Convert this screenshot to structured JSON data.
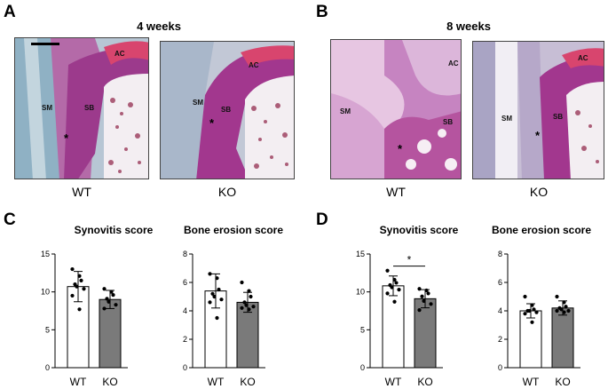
{
  "panels": {
    "A": {
      "letter": "A",
      "title": "4 weeks",
      "left_caption": "WT",
      "right_caption": "KO"
    },
    "B": {
      "letter": "B",
      "title": "8 weeks",
      "left_caption": "WT",
      "right_caption": "KO"
    },
    "C": {
      "letter": "C"
    },
    "D": {
      "letter": "D"
    }
  },
  "tissue_labels": {
    "am": "AC",
    "sm": "SM",
    "sb": "SB",
    "star": "*"
  },
  "chart_data": [
    {
      "type": "bar",
      "panel": "C",
      "title": "Synovitis score",
      "categories": [
        "WT",
        "KO"
      ],
      "values": [
        10.7,
        9.0
      ],
      "errors": [
        2.0,
        1.2
      ],
      "ylim": [
        0,
        15
      ],
      "yticks": [
        0,
        5,
        10,
        15
      ],
      "points": [
        [
          13.0,
          12.1,
          11.5,
          11.0,
          10.7,
          10.4,
          9.5,
          7.7
        ],
        [
          10.4,
          10.0,
          9.6,
          9.1,
          8.7,
          8.3,
          7.8
        ]
      ],
      "colors": [
        "#ffffff",
        "#7a7a7a"
      ],
      "significance": ""
    },
    {
      "type": "bar",
      "panel": "C",
      "title": "Bone erosion score",
      "categories": [
        "WT",
        "KO"
      ],
      "values": [
        5.4,
        4.6
      ],
      "errors": [
        1.2,
        0.7
      ],
      "ylim": [
        0,
        8
      ],
      "yticks": [
        0,
        2,
        4,
        6,
        8
      ],
      "points": [
        [
          6.6,
          6.3,
          5.5,
          5.2,
          5.0,
          4.8,
          4.6,
          3.5
        ],
        [
          6.0,
          5.4,
          5.0,
          4.6,
          4.4,
          4.3,
          4.2,
          4.1
        ]
      ],
      "colors": [
        "#ffffff",
        "#7a7a7a"
      ],
      "significance": ""
    },
    {
      "type": "bar",
      "panel": "D",
      "title": "Synovitis score",
      "categories": [
        "WT",
        "KO"
      ],
      "values": [
        10.8,
        9.1
      ],
      "errors": [
        1.3,
        1.2
      ],
      "ylim": [
        0,
        15
      ],
      "yticks": [
        0,
        5,
        10,
        15
      ],
      "points": [
        [
          12.8,
          11.6,
          11.2,
          10.9,
          10.6,
          10.3,
          9.8,
          8.7
        ],
        [
          10.4,
          10.2,
          9.8,
          9.4,
          8.8,
          8.4,
          7.6
        ]
      ],
      "colors": [
        "#ffffff",
        "#7a7a7a"
      ],
      "significance": "*"
    },
    {
      "type": "bar",
      "panel": "D",
      "title": "Bone erosion score",
      "categories": [
        "WT",
        "KO"
      ],
      "values": [
        4.0,
        4.2
      ],
      "errors": [
        0.5,
        0.5
      ],
      "ylim": [
        0,
        8
      ],
      "yticks": [
        0,
        2,
        4,
        6,
        8
      ],
      "points": [
        [
          5.0,
          4.4,
          4.1,
          4.0,
          4.0,
          3.9,
          3.8,
          3.2
        ],
        [
          5.0,
          4.6,
          4.3,
          4.2,
          4.1,
          4.0,
          4.0,
          3.9
        ]
      ],
      "colors": [
        "#ffffff",
        "#7a7a7a"
      ],
      "significance": ""
    }
  ]
}
